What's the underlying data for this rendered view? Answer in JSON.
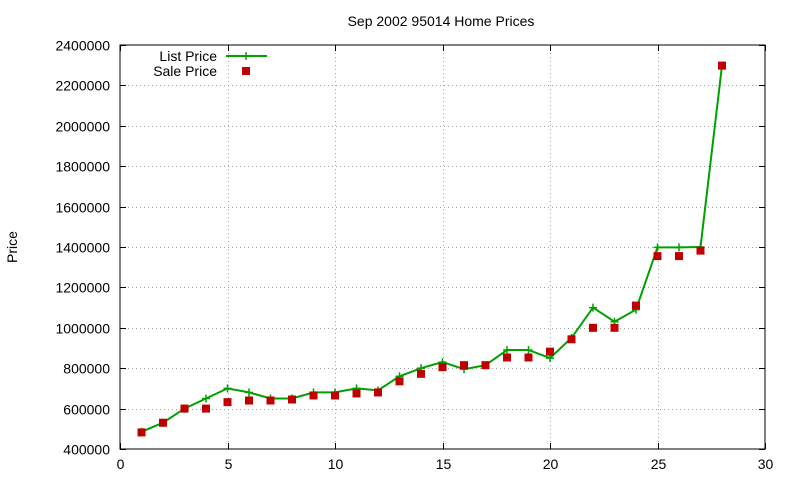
{
  "chart_data": {
    "type": "line",
    "title": "Sep 2002 95014 Home Prices",
    "xlabel": "",
    "ylabel": "Price",
    "xlim": [
      0,
      30
    ],
    "ylim": [
      400000,
      2400000
    ],
    "xticks": [
      0,
      5,
      10,
      15,
      20,
      25,
      30
    ],
    "yticks": [
      400000,
      600000,
      800000,
      1000000,
      1200000,
      1400000,
      1600000,
      1800000,
      2000000,
      2200000,
      2400000
    ],
    "grid": true,
    "legend_position": "top-left",
    "series": [
      {
        "name": "List Price",
        "style": "line+plus",
        "color": "#00a000",
        "x": [
          1,
          2,
          3,
          4,
          5,
          6,
          7,
          8,
          9,
          10,
          11,
          12,
          13,
          14,
          15,
          16,
          17,
          18,
          19,
          20,
          21,
          22,
          23,
          24,
          25,
          26,
          27,
          28
        ],
        "y": [
          485000,
          530000,
          600000,
          650000,
          700000,
          680000,
          650000,
          650000,
          680000,
          680000,
          700000,
          690000,
          760000,
          800000,
          830000,
          795000,
          815000,
          890000,
          890000,
          850000,
          950000,
          1100000,
          1030000,
          1090000,
          1398000,
          1398000,
          1400000,
          2298000
        ]
      },
      {
        "name": "Sale Price",
        "style": "square",
        "color": "#c00000",
        "x": [
          1,
          2,
          3,
          4,
          5,
          6,
          7,
          8,
          9,
          10,
          11,
          12,
          13,
          14,
          15,
          16,
          17,
          18,
          19,
          20,
          21,
          22,
          23,
          24,
          25,
          26,
          27,
          28
        ],
        "y": [
          482000,
          530000,
          600000,
          600000,
          632000,
          640000,
          640000,
          645000,
          665000,
          665000,
          675000,
          680000,
          735000,
          772000,
          805000,
          815000,
          815000,
          853000,
          853000,
          882000,
          943000,
          1000000,
          1000000,
          1110000,
          1355000,
          1355000,
          1382000,
          2298000
        ]
      }
    ]
  }
}
